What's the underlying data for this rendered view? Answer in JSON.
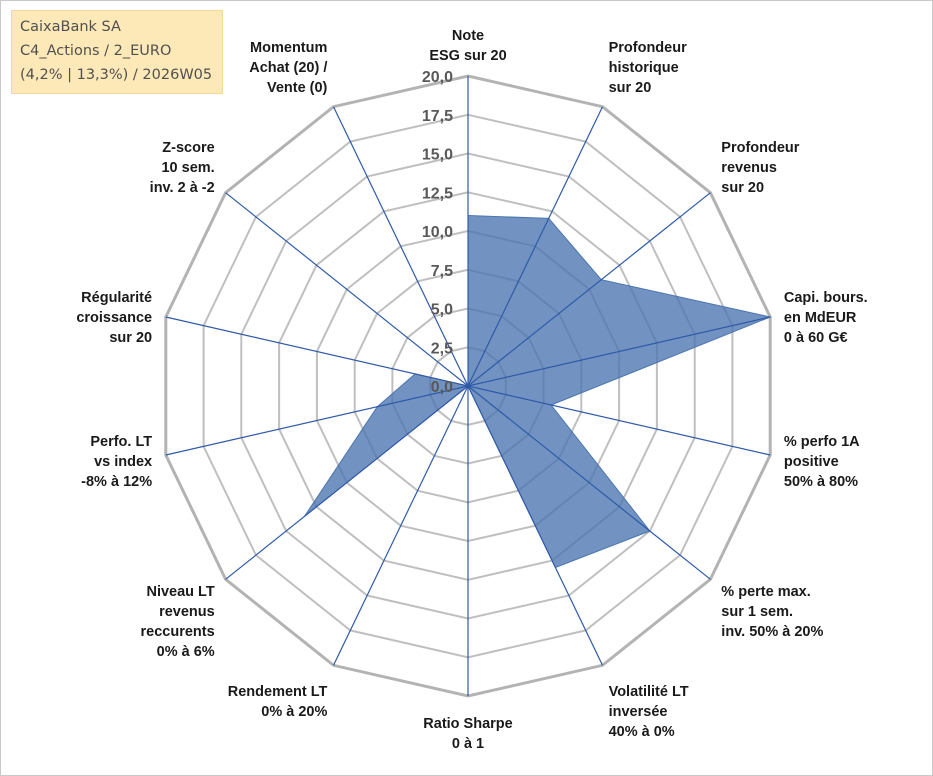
{
  "info_box": {
    "line1": "CaixaBank SA",
    "line2": "C4_Actions / 2_EURO",
    "line3": "(4,2% | 13,3%) / 2026W05"
  },
  "colors": {
    "fill": "#4a75b0",
    "spoke": "#2f5aa8",
    "grid": "#bfbfbf",
    "outer_grid": "#b3b3b3",
    "info_bg": "#fde9b8"
  },
  "chart_data": {
    "type": "radar",
    "title": "",
    "rmin": 0,
    "rmax": 20,
    "grid_step": 2.5,
    "tick_labels": [
      "0,0",
      "2,5",
      "5,0",
      "7,5",
      "10,0",
      "12,5",
      "15,0",
      "17,5",
      "20,0"
    ],
    "axes": [
      {
        "lines": [
          "Note",
          "ESG sur 20"
        ],
        "value": 11.0
      },
      {
        "lines": [
          "Profondeur",
          "historique",
          "sur 20"
        ],
        "value": 12.0
      },
      {
        "lines": [
          "Profondeur",
          "revenus",
          "sur 20"
        ],
        "value": 11.0
      },
      {
        "lines": [
          "Capi. bours.",
          "en MdEUR",
          "0 à 60 G€"
        ],
        "value": 20.0
      },
      {
        "lines": [
          "% perfo 1A",
          "positive",
          "50% à 80%"
        ],
        "value": 5.5
      },
      {
        "lines": [
          "% perte max.",
          "sur 1 sem.",
          "inv. 50% à 20%"
        ],
        "value": 15.0
      },
      {
        "lines": [
          "Volatilité LT",
          "inversée",
          "40% à 0%"
        ],
        "value": 13.0
      },
      {
        "lines": [
          "Ratio Sharpe",
          "0 à 1"
        ],
        "value": 0.0
      },
      {
        "lines": [
          "Rendement LT",
          "0% à 20%"
        ],
        "value": 0.0
      },
      {
        "lines": [
          "Niveau LT",
          "revenus",
          "reccurents",
          "0% à 6%"
        ],
        "value": 13.5
      },
      {
        "lines": [
          "Perfo. LT",
          "vs index",
          "-8% à 12%"
        ],
        "value": 6.0
      },
      {
        "lines": [
          "Régularité",
          "croissance",
          "sur 20"
        ],
        "value": 3.5
      },
      {
        "lines": [
          "Z-score",
          "10 sem.",
          "inv. 2 à -2"
        ],
        "value": 0.0
      },
      {
        "lines": [
          "Momentum",
          "Achat (20) /",
          "Vente (0)"
        ],
        "value": 0.0
      }
    ]
  }
}
